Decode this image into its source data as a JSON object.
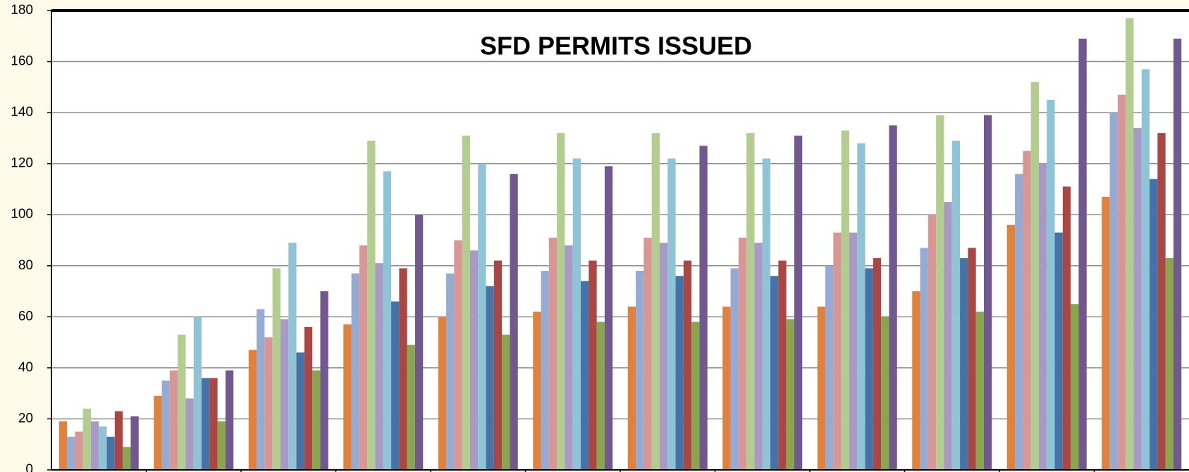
{
  "chart_data": {
    "type": "bar",
    "title": "SFD PERMITS ISSUED",
    "categories": [
      null,
      null,
      null,
      null,
      null,
      null,
      null,
      null,
      null,
      null,
      null,
      null
    ],
    "series": [
      {
        "color": "#e0823d",
        "values": [
          19,
          29,
          47,
          57,
          60,
          62,
          64,
          64,
          64,
          70,
          96,
          107
        ]
      },
      {
        "color": "#95abd4",
        "values": [
          13,
          35,
          63,
          77,
          77,
          78,
          78,
          79,
          80,
          87,
          116,
          140
        ]
      },
      {
        "color": "#d99694",
        "values": [
          15,
          39,
          52,
          88,
          90,
          91,
          91,
          91,
          93,
          100,
          125,
          147
        ]
      },
      {
        "color": "#b3cc8f",
        "values": [
          24,
          53,
          79,
          129,
          131,
          132,
          132,
          132,
          133,
          139,
          152,
          177
        ]
      },
      {
        "color": "#a99ac5",
        "values": [
          19,
          28,
          59,
          81,
          86,
          88,
          89,
          89,
          93,
          105,
          120,
          134
        ]
      },
      {
        "color": "#8fc3d6",
        "values": [
          17,
          60,
          89,
          117,
          120,
          122,
          122,
          122,
          128,
          129,
          145,
          157
        ]
      },
      {
        "color": "#4572a7",
        "values": [
          13,
          36,
          46,
          66,
          72,
          74,
          76,
          76,
          79,
          83,
          93,
          114
        ]
      },
      {
        "color": "#aa4643",
        "values": [
          23,
          36,
          56,
          79,
          82,
          82,
          82,
          82,
          83,
          87,
          111,
          132
        ]
      },
      {
        "color": "#89a54e",
        "values": [
          9,
          19,
          39,
          49,
          53,
          58,
          58,
          59,
          60,
          62,
          65,
          83
        ]
      },
      {
        "color": "#71588f",
        "values": [
          21,
          39,
          70,
          100,
          116,
          119,
          127,
          131,
          135,
          139,
          169,
          169
        ]
      }
    ],
    "ylim": [
      0,
      180
    ],
    "yticks": [
      0,
      20,
      40,
      60,
      80,
      100,
      120,
      140,
      160,
      180
    ],
    "grid": true
  }
}
